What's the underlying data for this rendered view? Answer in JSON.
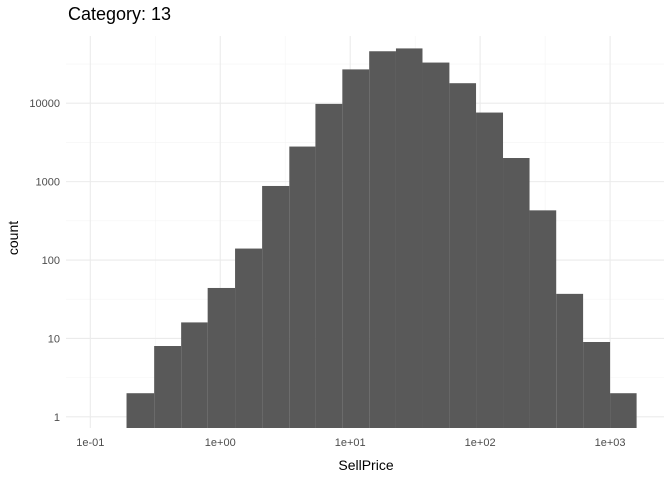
{
  "chart_data": {
    "type": "bar",
    "subtype": "histogram",
    "title": "Category: 13",
    "xlabel": "SellPrice",
    "ylabel": "count",
    "x_scale": "log10",
    "y_scale": "log10",
    "xlim": [
      0.065,
      2600
    ],
    "ylim": [
      0.72,
      72000
    ],
    "x_ticks": [
      {
        "value": 0.1,
        "label": "1e-01"
      },
      {
        "value": 1,
        "label": "1e+00"
      },
      {
        "value": 10,
        "label": "1e+01"
      },
      {
        "value": 100,
        "label": "1e+02"
      },
      {
        "value": 1000,
        "label": "1e+03"
      }
    ],
    "y_ticks": [
      {
        "value": 1,
        "label": "1"
      },
      {
        "value": 10,
        "label": "10"
      },
      {
        "value": 100,
        "label": "100"
      },
      {
        "value": 1000,
        "label": "1000"
      },
      {
        "value": 10000,
        "label": "10000"
      }
    ],
    "bins": [
      {
        "x_start": 0.19,
        "x_end": 0.31,
        "count": 2
      },
      {
        "x_start": 0.31,
        "x_end": 0.5,
        "count": 8
      },
      {
        "x_start": 0.5,
        "x_end": 0.8,
        "count": 16
      },
      {
        "x_start": 0.8,
        "x_end": 1.3,
        "count": 44
      },
      {
        "x_start": 1.3,
        "x_end": 2.1,
        "count": 140
      },
      {
        "x_start": 2.1,
        "x_end": 3.4,
        "count": 880
      },
      {
        "x_start": 3.4,
        "x_end": 5.4,
        "count": 2800
      },
      {
        "x_start": 5.4,
        "x_end": 8.7,
        "count": 9800
      },
      {
        "x_start": 8.7,
        "x_end": 14,
        "count": 27000
      },
      {
        "x_start": 14,
        "x_end": 22.5,
        "count": 46000
      },
      {
        "x_start": 22.5,
        "x_end": 36,
        "count": 50000
      },
      {
        "x_start": 36,
        "x_end": 58,
        "count": 33000
      },
      {
        "x_start": 58,
        "x_end": 93,
        "count": 18000
      },
      {
        "x_start": 93,
        "x_end": 150,
        "count": 7600
      },
      {
        "x_start": 150,
        "x_end": 240,
        "count": 2000
      },
      {
        "x_start": 240,
        "x_end": 385,
        "count": 430
      },
      {
        "x_start": 385,
        "x_end": 620,
        "count": 37
      },
      {
        "x_start": 620,
        "x_end": 1000,
        "count": 9
      },
      {
        "x_start": 1000,
        "x_end": 1600,
        "count": 2
      }
    ],
    "bar_color": "#595959",
    "grid": true,
    "background": "#ffffff",
    "legend": "none"
  }
}
